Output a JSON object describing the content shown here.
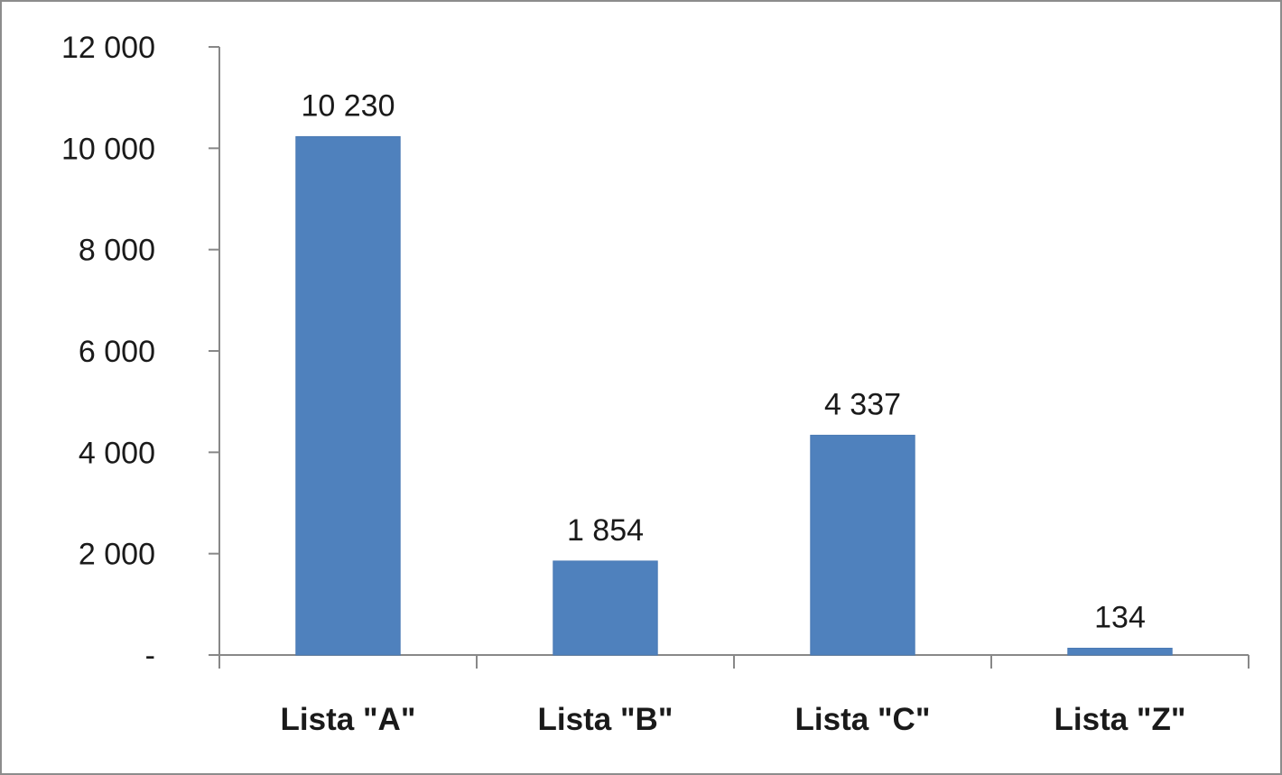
{
  "chart_data": {
    "type": "bar",
    "categories": [
      "Lista \"A\"",
      "Lista \"B\"",
      "Lista \"C\"",
      "Lista \"Z\""
    ],
    "values": [
      10230,
      1854,
      4337,
      134
    ],
    "data_labels": [
      "10 230",
      "1 854",
      "4 337",
      "134"
    ],
    "title": "",
    "xlabel": "",
    "ylabel": "",
    "ylim": [
      0,
      12000
    ],
    "yticks": [
      0,
      2000,
      4000,
      6000,
      8000,
      10000,
      12000
    ],
    "ytick_labels": [
      "-",
      "2 000",
      "4 000",
      "6 000",
      "8 000",
      "10 000",
      "12 000"
    ],
    "grid": false,
    "legend": "none",
    "bar_color": "#4f81bd"
  }
}
